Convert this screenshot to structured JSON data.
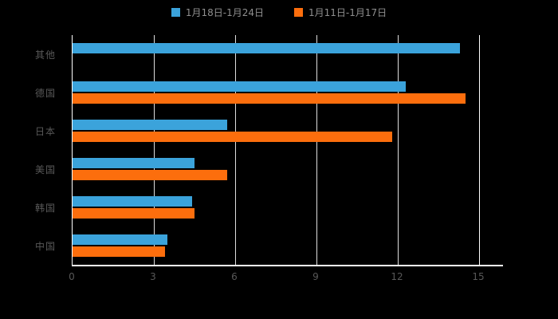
{
  "chart_data": {
    "type": "bar",
    "orientation": "horizontal",
    "title": "",
    "xlabel": "",
    "ylabel": "",
    "categories": [
      "其他",
      "德国",
      "日本",
      "美国",
      "韩国",
      "中国"
    ],
    "series": [
      {
        "name": "1月18日-1月24日",
        "color": "#3BA3DB",
        "values": [
          14.3,
          12.3,
          5.7,
          4.5,
          4.4,
          3.5
        ]
      },
      {
        "name": "1月11日-1月17日",
        "color": "#FC6E0D",
        "values": [
          0,
          14.5,
          11.8,
          5.7,
          4.5,
          3.4
        ]
      }
    ],
    "x_ticks": [
      0,
      3,
      6,
      9,
      12,
      15
    ],
    "xlim": [
      0,
      15
    ],
    "grid": true,
    "legend_position": "top",
    "background_color": "#000000",
    "axis_color": "#ffffff",
    "text_color": "#585858"
  }
}
